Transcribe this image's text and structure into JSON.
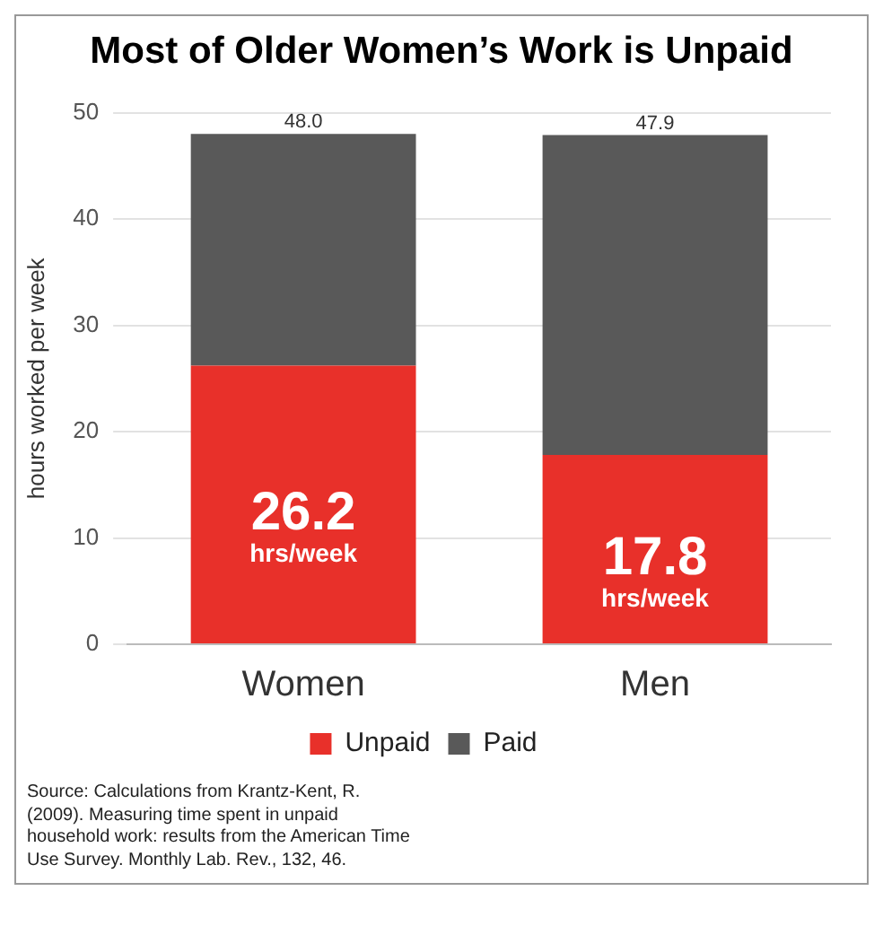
{
  "chart_data": {
    "type": "bar",
    "title": "Most of Older Women’s Work is Unpaid",
    "ylabel": "hours worked per week",
    "categories": [
      "Women",
      "Men"
    ],
    "stacked": true,
    "series": [
      {
        "name": "Unpaid",
        "color": "#e8302a",
        "values": [
          26.2,
          17.8
        ],
        "value_labels": [
          "26.2 hrs/week",
          "17.8 hrs/week"
        ]
      },
      {
        "name": "Paid",
        "color": "#595959",
        "values": [
          21.8,
          30.1
        ]
      }
    ],
    "totals": [
      "48.0",
      "47.9"
    ],
    "ylim": [
      0,
      50
    ],
    "yticks": [
      0,
      10,
      20,
      30,
      40,
      50
    ],
    "grid": "y",
    "legend": "bottom",
    "annotations": [
      "Source: Calculations from Krantz-Kent, R. (2009). Measuring time spent in unpaid household work: results from the American Time Use Survey. Monthly Lab. Rev., 132, 46."
    ]
  }
}
